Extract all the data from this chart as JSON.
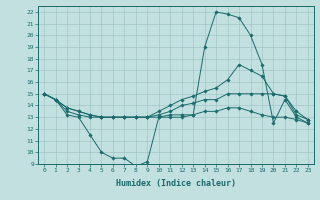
{
  "xlabel": "Humidex (Indice chaleur)",
  "xlim": [
    -0.5,
    23.5
  ],
  "ylim": [
    9,
    22.5
  ],
  "xticks": [
    0,
    1,
    2,
    3,
    4,
    5,
    6,
    7,
    8,
    9,
    10,
    11,
    12,
    13,
    14,
    15,
    16,
    17,
    18,
    19,
    20,
    21,
    22,
    23
  ],
  "yticks": [
    9,
    10,
    11,
    12,
    13,
    14,
    15,
    16,
    17,
    18,
    19,
    20,
    21,
    22
  ],
  "bg_color": "#c2e0e0",
  "line_color": "#1a6b6b",
  "series": [
    {
      "x": [
        0,
        1,
        2,
        3,
        4,
        5,
        6,
        7,
        8,
        9,
        10,
        11,
        12,
        13,
        14,
        15,
        16,
        17,
        18,
        19,
        20,
        21,
        22,
        23
      ],
      "y": [
        15,
        14.5,
        13.2,
        13.0,
        11.5,
        10.0,
        9.5,
        9.5,
        8.8,
        9.2,
        13.0,
        13.0,
        13.0,
        13.2,
        19.0,
        22.0,
        21.8,
        21.5,
        20.0,
        17.5,
        12.5,
        14.5,
        13.0,
        12.5
      ]
    },
    {
      "x": [
        0,
        1,
        2,
        3,
        4,
        5,
        6,
        7,
        8,
        9,
        10,
        11,
        12,
        13,
        14,
        15,
        16,
        17,
        18,
        19,
        20,
        21,
        22,
        23
      ],
      "y": [
        15,
        14.5,
        13.8,
        13.5,
        13.2,
        13.0,
        13.0,
        13.0,
        13.0,
        13.0,
        13.5,
        14.0,
        14.5,
        14.8,
        15.2,
        15.5,
        16.2,
        17.5,
        17.0,
        16.5,
        15.0,
        14.8,
        13.2,
        12.8
      ]
    },
    {
      "x": [
        0,
        1,
        2,
        3,
        4,
        5,
        6,
        7,
        8,
        9,
        10,
        11,
        12,
        13,
        14,
        15,
        16,
        17,
        18,
        19,
        20,
        21,
        22,
        23
      ],
      "y": [
        15,
        14.5,
        13.8,
        13.5,
        13.2,
        13.0,
        13.0,
        13.0,
        13.0,
        13.0,
        13.2,
        13.5,
        14.0,
        14.2,
        14.5,
        14.5,
        15.0,
        15.0,
        15.0,
        15.0,
        15.0,
        14.8,
        13.5,
        12.8
      ]
    },
    {
      "x": [
        0,
        1,
        2,
        3,
        4,
        5,
        6,
        7,
        8,
        9,
        10,
        11,
        12,
        13,
        14,
        15,
        16,
        17,
        18,
        19,
        20,
        21,
        22,
        23
      ],
      "y": [
        15,
        14.5,
        13.5,
        13.2,
        13.0,
        13.0,
        13.0,
        13.0,
        13.0,
        13.0,
        13.0,
        13.2,
        13.2,
        13.2,
        13.5,
        13.5,
        13.8,
        13.8,
        13.5,
        13.2,
        13.0,
        13.0,
        12.8,
        12.5
      ]
    }
  ]
}
